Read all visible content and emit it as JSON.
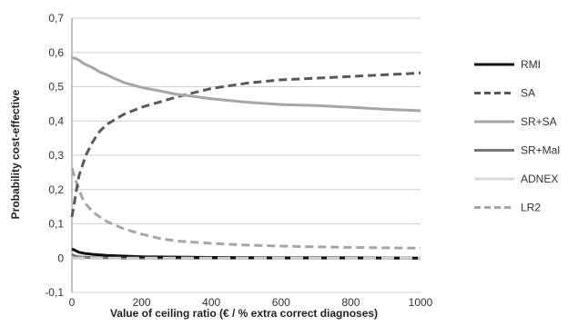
{
  "chart_data": {
    "type": "line",
    "title": "",
    "xlabel": "Value of ceiling ratio (€ / % extra correct diagnoses)",
    "ylabel": "Probability cost-effective",
    "xlim": [
      0,
      1000
    ],
    "ylim": [
      -0.1,
      0.7
    ],
    "x_ticks": [
      0,
      200,
      400,
      600,
      800,
      1000
    ],
    "x_tick_labels": [
      "0",
      "200",
      "400",
      "600",
      "800",
      "1000"
    ],
    "y_ticks": [
      -0.1,
      0,
      0.1,
      0.2,
      0.3,
      0.4,
      0.5,
      0.6,
      0.7
    ],
    "y_tick_labels": [
      "-0,1",
      "0",
      "0,1",
      "0,2",
      "0,3",
      "0,4",
      "0,5",
      "0,6",
      "0,7"
    ],
    "grid": "horizontal",
    "legend": "right",
    "series": [
      {
        "name": "RMI",
        "color": "#111111",
        "dash": "solid",
        "x": [
          0,
          10,
          20,
          40,
          60,
          100,
          150,
          200,
          300,
          400,
          600,
          800,
          1000
        ],
        "y": [
          0.027,
          0.022,
          0.017,
          0.013,
          0.011,
          0.008,
          0.006,
          0.004,
          0.003,
          0.002,
          0.001,
          0.001,
          0.0
        ]
      },
      {
        "name": "SA",
        "color": "#595959",
        "dash": "dashed",
        "x": [
          0,
          10,
          20,
          40,
          60,
          80,
          100,
          150,
          200,
          250,
          300,
          400,
          500,
          600,
          700,
          800,
          900,
          1000
        ],
        "y": [
          0.12,
          0.18,
          0.24,
          0.3,
          0.34,
          0.37,
          0.39,
          0.42,
          0.44,
          0.455,
          0.47,
          0.495,
          0.51,
          0.52,
          0.525,
          0.53,
          0.535,
          0.54
        ]
      },
      {
        "name": "SR+SA",
        "color": "#a6a6a6",
        "dash": "solid",
        "x": [
          0,
          10,
          20,
          30,
          40,
          60,
          80,
          100,
          120,
          150,
          200,
          250,
          300,
          400,
          500,
          600,
          700,
          800,
          900,
          1000
        ],
        "y": [
          0.585,
          0.582,
          0.578,
          0.57,
          0.565,
          0.555,
          0.543,
          0.535,
          0.525,
          0.512,
          0.498,
          0.488,
          0.478,
          0.465,
          0.455,
          0.448,
          0.445,
          0.44,
          0.434,
          0.43
        ]
      },
      {
        "name": "SR+Mal",
        "color": "#777777",
        "dash": "solid",
        "x": [
          0,
          10,
          20,
          50,
          100,
          200,
          400,
          600,
          800,
          1000
        ],
        "y": [
          0.01,
          0.006,
          0.004,
          0.002,
          0.001,
          0.0,
          0.0,
          0.0,
          0.0,
          0.0
        ]
      },
      {
        "name": "ADNEX",
        "color": "#d9d9d9",
        "dash": "solid",
        "x": [
          0,
          10,
          20,
          50,
          100,
          200,
          400,
          600,
          800,
          1000
        ],
        "y": [
          0.003,
          0.002,
          0.001,
          0.0,
          0.0,
          0.0,
          0.0,
          0.0,
          0.0,
          0.0
        ]
      },
      {
        "name": "LR2",
        "color": "#a6a6a6",
        "dash": "dashed",
        "x": [
          0,
          10,
          20,
          30,
          40,
          60,
          80,
          100,
          150,
          200,
          250,
          300,
          400,
          500,
          600,
          700,
          800,
          900,
          1000
        ],
        "y": [
          0.262,
          0.23,
          0.2,
          0.175,
          0.158,
          0.135,
          0.12,
          0.107,
          0.085,
          0.07,
          0.058,
          0.05,
          0.043,
          0.038,
          0.035,
          0.033,
          0.031,
          0.03,
          0.029
        ]
      }
    ]
  }
}
